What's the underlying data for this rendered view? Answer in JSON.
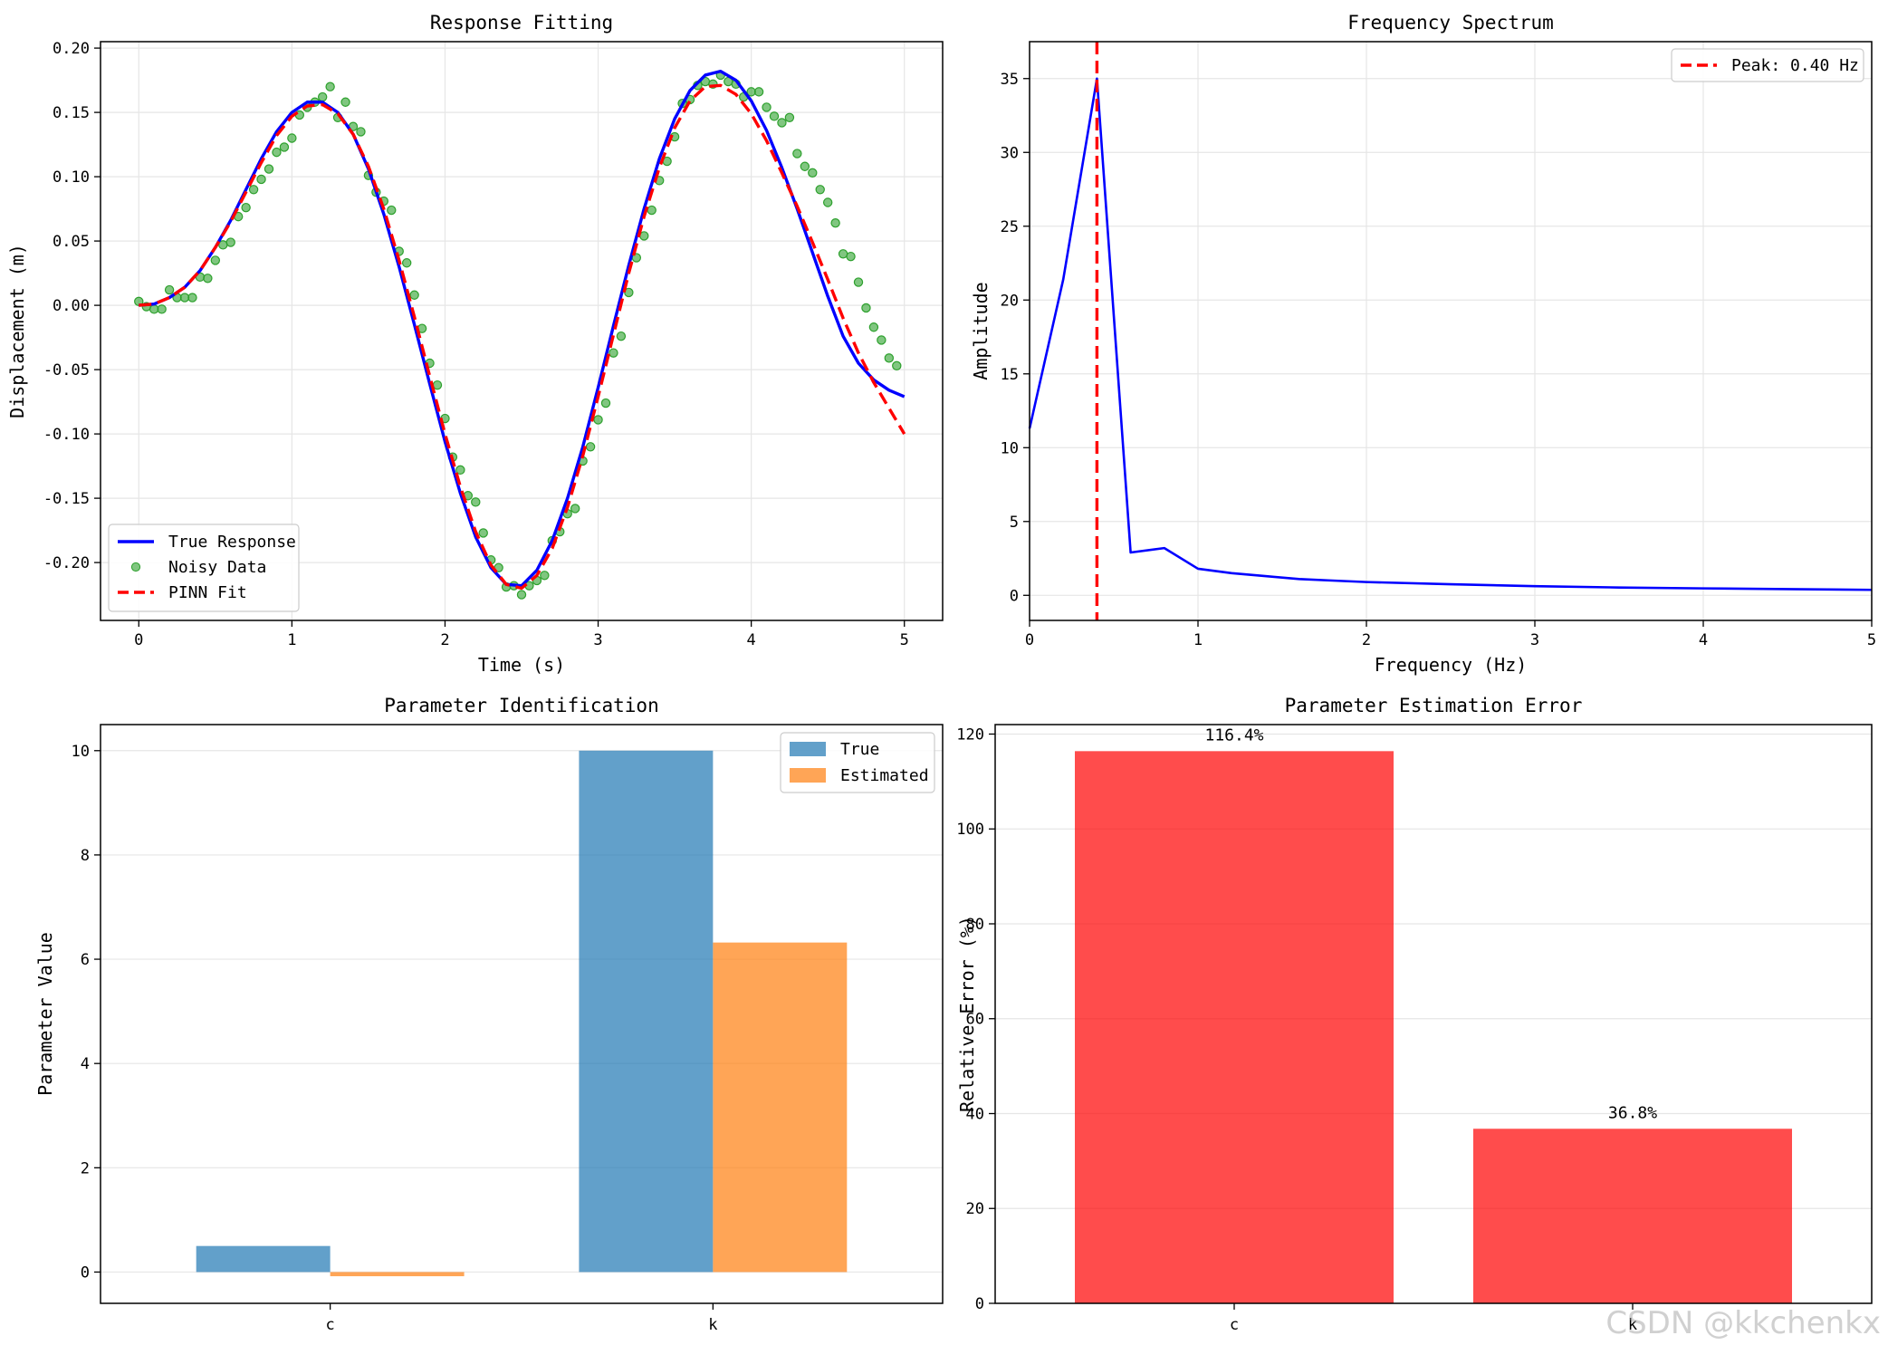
{
  "watermark": "CSDN @kkchenkx",
  "colors": {
    "true_line": "#0000ff",
    "noisy": "#2ca02c",
    "pinn": "#ff0000",
    "bar_true": "#1f77b4",
    "bar_est": "#ff7f0e",
    "bar_err": "#ff0000",
    "grid": "#e6e6e6"
  },
  "chart_data": [
    {
      "type": "line",
      "title": "Response Fitting",
      "xlabel": "Time (s)",
      "ylabel": "Displacement (m)",
      "xlim": [
        -0.25,
        5.25
      ],
      "ylim": [
        -0.245,
        0.205
      ],
      "xticks": [
        0,
        1,
        2,
        3,
        4,
        5
      ],
      "xtick_labels": [
        "0",
        "1",
        "2",
        "3",
        "4",
        "5"
      ],
      "yticks": [
        -0.2,
        -0.15,
        -0.1,
        -0.05,
        0.0,
        0.05,
        0.1,
        0.15,
        0.2
      ],
      "ytick_labels": [
        "-0.20",
        "-0.15",
        "-0.10",
        "-0.05",
        "0.00",
        "0.05",
        "0.10",
        "0.15",
        "0.20"
      ],
      "grid": true,
      "legend": "lower-left",
      "series": [
        {
          "name": "True Response",
          "kind": "line",
          "color": "#0000ff",
          "dash": "solid",
          "x": [
            0,
            0.1,
            0.2,
            0.3,
            0.4,
            0.5,
            0.6,
            0.7,
            0.8,
            0.9,
            1.0,
            1.1,
            1.2,
            1.3,
            1.4,
            1.5,
            1.6,
            1.7,
            1.8,
            1.9,
            2.0,
            2.1,
            2.2,
            2.3,
            2.4,
            2.5,
            2.6,
            2.7,
            2.8,
            2.9,
            3.0,
            3.1,
            3.2,
            3.3,
            3.4,
            3.5,
            3.6,
            3.7,
            3.8,
            3.9,
            4.0,
            4.1,
            4.2,
            4.3,
            4.4,
            4.5,
            4.6,
            4.7,
            4.8,
            4.9,
            5.0
          ],
          "y": [
            0.0,
            0.001,
            0.006,
            0.014,
            0.027,
            0.045,
            0.066,
            0.09,
            0.114,
            0.135,
            0.15,
            0.158,
            0.158,
            0.15,
            0.133,
            0.106,
            0.071,
            0.03,
            -0.015,
            -0.061,
            -0.106,
            -0.146,
            -0.18,
            -0.204,
            -0.217,
            -0.218,
            -0.206,
            -0.183,
            -0.15,
            -0.11,
            -0.064,
            -0.016,
            0.031,
            0.075,
            0.114,
            0.145,
            0.167,
            0.179,
            0.182,
            0.175,
            0.159,
            0.136,
            0.107,
            0.075,
            0.041,
            0.007,
            -0.024,
            -0.045,
            -0.058,
            -0.066,
            -0.071
          ]
        },
        {
          "name": "Noisy Data",
          "kind": "scatter",
          "color": "#2ca02c",
          "x": [
            0,
            0.05,
            0.1,
            0.15,
            0.2,
            0.25,
            0.3,
            0.35,
            0.4,
            0.45,
            0.5,
            0.55,
            0.6,
            0.65,
            0.7,
            0.75,
            0.8,
            0.85,
            0.9,
            0.95,
            1.0,
            1.05,
            1.1,
            1.15,
            1.2,
            1.25,
            1.3,
            1.35,
            1.4,
            1.45,
            1.5,
            1.55,
            1.6,
            1.65,
            1.7,
            1.75,
            1.8,
            1.85,
            1.9,
            1.95,
            2.0,
            2.05,
            2.1,
            2.15,
            2.2,
            2.25,
            2.3,
            2.35,
            2.4,
            2.45,
            2.5,
            2.55,
            2.6,
            2.65,
            2.7,
            2.75,
            2.8,
            2.85,
            2.9,
            2.95,
            3.0,
            3.05,
            3.1,
            3.15,
            3.2,
            3.25,
            3.3,
            3.35,
            3.4,
            3.45,
            3.5,
            3.55,
            3.6,
            3.65,
            3.7,
            3.75,
            3.8,
            3.85,
            3.9,
            3.95,
            4.0,
            4.05,
            4.1,
            4.15,
            4.2,
            4.25,
            4.3,
            4.35,
            4.4,
            4.45,
            4.5,
            4.55,
            4.6,
            4.65,
            4.7,
            4.75,
            4.8,
            4.85,
            4.9,
            4.95
          ],
          "y": [
            0.003,
            -0.001,
            -0.003,
            -0.003,
            0.012,
            0.006,
            0.006,
            0.006,
            0.022,
            0.021,
            0.035,
            0.047,
            0.049,
            0.069,
            0.076,
            0.09,
            0.098,
            0.106,
            0.119,
            0.123,
            0.13,
            0.148,
            0.154,
            0.158,
            0.162,
            0.17,
            0.146,
            0.158,
            0.139,
            0.135,
            0.101,
            0.088,
            0.081,
            0.074,
            0.042,
            0.033,
            0.008,
            -0.018,
            -0.045,
            -0.062,
            -0.088,
            -0.118,
            -0.128,
            -0.148,
            -0.153,
            -0.177,
            -0.198,
            -0.204,
            -0.219,
            -0.218,
            -0.225,
            -0.218,
            -0.214,
            -0.21,
            -0.183,
            -0.176,
            -0.162,
            -0.158,
            -0.121,
            -0.11,
            -0.089,
            -0.076,
            -0.037,
            -0.024,
            0.01,
            0.037,
            0.054,
            0.074,
            0.097,
            0.112,
            0.131,
            0.157,
            0.16,
            0.171,
            0.174,
            0.172,
            0.179,
            0.174,
            0.172,
            0.162,
            0.166,
            0.166,
            0.154,
            0.147,
            0.142,
            0.146,
            0.118,
            0.108,
            0.103,
            0.09,
            0.08,
            0.064,
            0.04,
            0.038,
            0.018,
            -0.002,
            -0.017,
            -0.027,
            -0.041,
            -0.047
          ]
        },
        {
          "name": "PINN Fit",
          "kind": "line",
          "color": "#ff0000",
          "dash": "dashed",
          "x": [
            0,
            0.1,
            0.2,
            0.3,
            0.4,
            0.5,
            0.6,
            0.7,
            0.8,
            0.9,
            1.0,
            1.1,
            1.2,
            1.3,
            1.4,
            1.5,
            1.6,
            1.7,
            1.8,
            1.9,
            2.0,
            2.1,
            2.2,
            2.3,
            2.4,
            2.5,
            2.6,
            2.7,
            2.8,
            2.9,
            3.0,
            3.1,
            3.2,
            3.3,
            3.4,
            3.5,
            3.6,
            3.7,
            3.8,
            3.9,
            4.0,
            4.1,
            4.2,
            4.3,
            4.4,
            4.5,
            4.6,
            4.7,
            4.8,
            4.9,
            5.0
          ],
          "y": [
            0.0,
            0.001,
            0.006,
            0.014,
            0.027,
            0.045,
            0.065,
            0.088,
            0.111,
            0.132,
            0.147,
            0.155,
            0.156,
            0.149,
            0.133,
            0.108,
            0.075,
            0.035,
            -0.009,
            -0.055,
            -0.1,
            -0.141,
            -0.176,
            -0.202,
            -0.217,
            -0.22,
            -0.21,
            -0.189,
            -0.157,
            -0.117,
            -0.071,
            -0.023,
            0.025,
            0.069,
            0.107,
            0.138,
            0.159,
            0.17,
            0.171,
            0.164,
            0.149,
            0.128,
            0.103,
            0.077,
            0.049,
            0.02,
            -0.01,
            -0.037,
            -0.06,
            -0.08,
            -0.1
          ]
        }
      ]
    },
    {
      "type": "line",
      "title": "Frequency Spectrum",
      "xlabel": "Frequency (Hz)",
      "ylabel": "Amplitude",
      "xlim": [
        0,
        5
      ],
      "ylim": [
        -1.7,
        37.5
      ],
      "xticks": [
        0,
        1,
        2,
        3,
        4,
        5
      ],
      "xtick_labels": [
        "0",
        "1",
        "2",
        "3",
        "4",
        "5"
      ],
      "yticks": [
        0,
        5,
        10,
        15,
        20,
        25,
        30,
        35
      ],
      "ytick_labels": [
        "0",
        "5",
        "10",
        "15",
        "20",
        "25",
        "30",
        "35"
      ],
      "grid": true,
      "legend": "top-right",
      "series": [
        {
          "name": "",
          "kind": "line",
          "color": "#0000ff",
          "dash": "solid",
          "x": [
            0,
            0.2,
            0.4,
            0.6,
            0.8,
            1.0,
            1.2,
            1.4,
            1.6,
            1.8,
            2.0,
            2.5,
            3.0,
            3.5,
            4.0,
            4.5,
            5.0
          ],
          "y": [
            11.3,
            21.4,
            35.0,
            2.9,
            3.2,
            1.8,
            1.5,
            1.3,
            1.1,
            1.0,
            0.9,
            0.75,
            0.62,
            0.53,
            0.47,
            0.42,
            0.37
          ]
        },
        {
          "name": "Peak: 0.40 Hz",
          "kind": "vline",
          "color": "#ff0000",
          "dash": "dashed",
          "x": 0.4
        }
      ]
    },
    {
      "type": "bar",
      "title": "Parameter Identification",
      "xlabel": "",
      "ylabel": "Parameter Value",
      "categories": [
        "c",
        "k"
      ],
      "ylim": [
        -0.6,
        10.5
      ],
      "yticks": [
        0,
        2,
        4,
        6,
        8,
        10
      ],
      "ytick_labels": [
        "0",
        "2",
        "4",
        "6",
        "8",
        "10"
      ],
      "grid": true,
      "legend": "top-right",
      "series": [
        {
          "name": "True",
          "color": "#1f77b4",
          "values": [
            0.5,
            10.0
          ]
        },
        {
          "name": "Estimated",
          "color": "#ff7f0e",
          "values": [
            -0.08,
            6.32
          ]
        }
      ]
    },
    {
      "type": "bar",
      "title": "Parameter Estimation Error",
      "xlabel": "",
      "ylabel": "Relative Error (%)",
      "categories": [
        "c",
        "k"
      ],
      "ylim": [
        0,
        122
      ],
      "yticks": [
        0,
        20,
        40,
        60,
        80,
        100,
        120
      ],
      "ytick_labels": [
        "0",
        "20",
        "40",
        "60",
        "80",
        "100",
        "120"
      ],
      "grid": true,
      "series": [
        {
          "name": "",
          "color": "#ff0000",
          "values": [
            116.4,
            36.8
          ]
        }
      ],
      "data_labels": [
        "116.4%",
        "36.8%"
      ]
    }
  ]
}
